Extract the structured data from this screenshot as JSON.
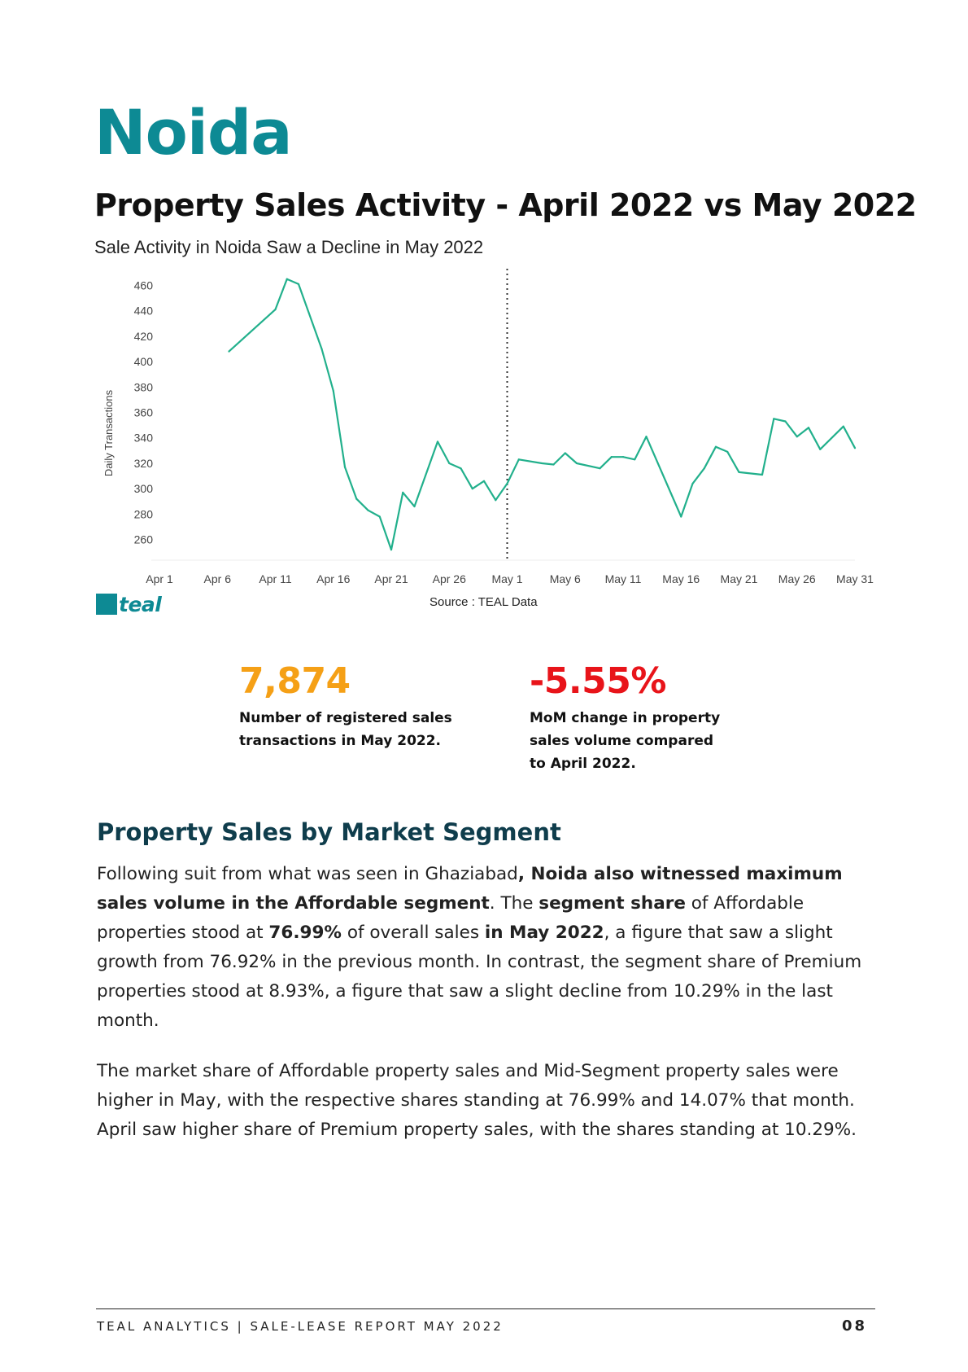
{
  "page": {
    "city_title": "Noida",
    "report_title": "Property Sales Activity - April 2022 vs May 2022"
  },
  "chart_data": {
    "type": "line",
    "title": "Sale Activity in Noida Saw a Decline in May 2022",
    "xlabel": "",
    "ylabel": "Daily Transactions",
    "ylim": [
      245,
      468
    ],
    "yticks": [
      260,
      280,
      300,
      320,
      340,
      360,
      380,
      400,
      420,
      440,
      460
    ],
    "xlim": [
      "2022-04-01",
      "2022-05-31"
    ],
    "xtick_labels": [
      "Apr 1",
      "Apr 6",
      "Apr 11",
      "Apr 16",
      "Apr 21",
      "Apr 26",
      "May 1",
      "May 6",
      "May 11",
      "May 16",
      "May 21",
      "May 26",
      "May 31"
    ],
    "divider_at": "2022-05-01",
    "line_color": "#22b08c",
    "grid": false,
    "series": [
      {
        "x": [
          "2022-04-07",
          "2022-04-11",
          "2022-04-12",
          "2022-04-13",
          "2022-04-15",
          "2022-04-16",
          "2022-04-17",
          "2022-04-18",
          "2022-04-19",
          "2022-04-20",
          "2022-04-21",
          "2022-04-22",
          "2022-04-23",
          "2022-04-25",
          "2022-04-26",
          "2022-04-27",
          "2022-04-28",
          "2022-04-29",
          "2022-04-30",
          "2022-05-01",
          "2022-05-02",
          "2022-05-04",
          "2022-05-05",
          "2022-05-06",
          "2022-05-07",
          "2022-05-09",
          "2022-05-10",
          "2022-05-11",
          "2022-05-12",
          "2022-05-13",
          "2022-05-16",
          "2022-05-17",
          "2022-05-18",
          "2022-05-19",
          "2022-05-20",
          "2022-05-21",
          "2022-05-23",
          "2022-05-24",
          "2022-05-25",
          "2022-05-26",
          "2022-05-27",
          "2022-05-28",
          "2022-05-30",
          "2022-05-31"
        ],
        "values": [
          408,
          441,
          465,
          461,
          410,
          377,
          317,
          292,
          283,
          278,
          252,
          297,
          286,
          337,
          320,
          316,
          300,
          306,
          291,
          304,
          323,
          320,
          319,
          328,
          320,
          316,
          325,
          325,
          323,
          341,
          278,
          304,
          316,
          333,
          329,
          313,
          311,
          355,
          353,
          341,
          348,
          331,
          349,
          332
        ]
      }
    ]
  },
  "source": {
    "logo_text": "teal",
    "text": "Source : TEAL Data"
  },
  "stats": [
    {
      "value": "7,874",
      "color": "#f5a016",
      "description": "Number of registered sales transactions in May 2022."
    },
    {
      "value": "-5.55%",
      "color": "#e8141a",
      "description": "MoM change in property sales volume compared to April 2022."
    }
  ],
  "segment": {
    "title": "Property Sales by Market Segment",
    "p1": {
      "a": "Following suit from what was seen in Ghaziabad",
      "b": ", Noida also witnessed maximum sales volume in the Affordable segment",
      "c": ". The ",
      "d": "segment  share",
      "e": " of Affordable properties stood at ",
      "f": "76.99%",
      "g": " of overall sales ",
      "h": "in May 2022",
      "i": ", a figure that saw a slight growth from 76.92% in the previous month. In contrast, the segment share of Premium properties stood at 8.93%, a figure that saw a slight decline from 10.29% in the last month."
    },
    "p2": "The market share of Affordable property sales and Mid-Segment property sales were higher in May, with the respective shares standing at 76.99% and 14.07% that month. April saw higher share of Premium property sales, with the shares standing at 10.29%."
  },
  "footer": {
    "text": "TEAL ANALYTICS | SALE-LEASE REPORT MAY 2022",
    "page_number": "08"
  }
}
